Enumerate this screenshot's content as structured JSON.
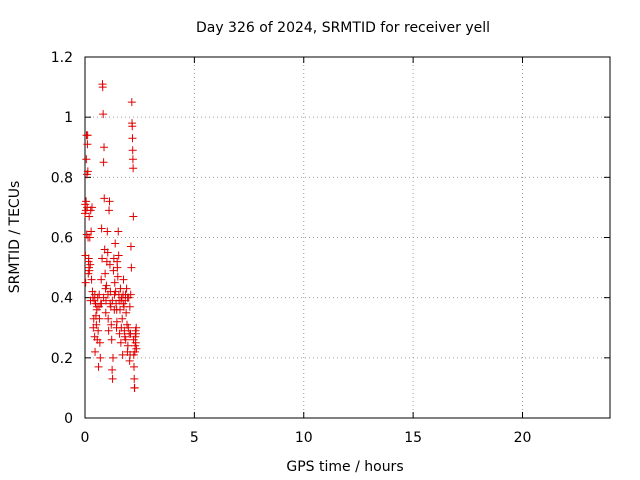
{
  "chart_data": {
    "type": "scatter",
    "title": "Day 326 of 2024, SRMTID for receiver yell",
    "xlabel": "GPS time / hours",
    "ylabel": "SRMTID / TECUs",
    "xlim": [
      0,
      24
    ],
    "ylim": [
      0,
      1.2
    ],
    "xticks": [
      0,
      5,
      10,
      15,
      20
    ],
    "yticks": [
      0,
      0.2,
      0.4,
      0.6,
      0.8,
      1,
      1.2
    ],
    "xtick_labels": [
      "0",
      "5",
      "10",
      "15",
      "20"
    ],
    "ytick_labels": [
      "0",
      "0.2",
      "0.4",
      "0.6",
      "0.8",
      "1",
      "1.2"
    ],
    "grid": true,
    "marker": "+",
    "marker_color": "#e00000",
    "series": [
      {
        "name": "SRMTID",
        "points": [
          [
            0.0,
            0.68
          ],
          [
            0.01,
            0.71
          ],
          [
            0.02,
            0.54
          ],
          [
            0.03,
            0.45
          ],
          [
            0.04,
            0.69
          ],
          [
            0.05,
            0.72
          ],
          [
            0.06,
            0.86
          ],
          [
            0.07,
            0.94
          ],
          [
            0.08,
            0.61
          ],
          [
            0.09,
            0.81
          ],
          [
            0.1,
            0.7
          ],
          [
            0.11,
            0.91
          ],
          [
            0.12,
            0.94
          ],
          [
            0.13,
            0.82
          ],
          [
            0.14,
            0.6
          ],
          [
            0.15,
            0.48
          ],
          [
            0.16,
            0.52
          ],
          [
            0.17,
            0.53
          ],
          [
            0.18,
            0.5
          ],
          [
            0.19,
            0.67
          ],
          [
            0.2,
            0.49
          ],
          [
            0.22,
            0.6
          ],
          [
            0.24,
            0.51
          ],
          [
            0.26,
            0.69
          ],
          [
            0.28,
            0.62
          ],
          [
            0.3,
            0.46
          ],
          [
            0.32,
            0.7
          ],
          [
            0.34,
            0.42
          ],
          [
            0.36,
            0.4
          ],
          [
            0.38,
            0.3
          ],
          [
            0.4,
            0.33
          ],
          [
            0.42,
            0.39
          ],
          [
            0.44,
            0.27
          ],
          [
            0.46,
            0.22
          ],
          [
            0.48,
            0.38
          ],
          [
            0.5,
            0.34
          ],
          [
            0.52,
            0.31
          ],
          [
            0.54,
            0.36
          ],
          [
            0.56,
            0.26
          ],
          [
            0.58,
            0.4
          ],
          [
            0.6,
            0.29
          ],
          [
            0.62,
            0.17
          ],
          [
            0.64,
            0.37
          ],
          [
            0.66,
            0.33
          ],
          [
            0.68,
            0.25
          ],
          [
            0.7,
            0.2
          ],
          [
            0.72,
            0.38
          ],
          [
            0.74,
            0.46
          ],
          [
            0.76,
            0.63
          ],
          [
            0.78,
            0.53
          ],
          [
            0.8,
            1.11
          ],
          [
            0.81,
            1.1
          ],
          [
            0.83,
            1.01
          ],
          [
            0.85,
            0.85
          ],
          [
            0.87,
            0.9
          ],
          [
            0.88,
            0.73
          ],
          [
            0.9,
            0.56
          ],
          [
            0.92,
            0.48
          ],
          [
            0.94,
            0.43
          ],
          [
            0.96,
            0.39
          ],
          [
            0.98,
            0.44
          ],
          [
            1.0,
            0.52
          ],
          [
            1.02,
            0.62
          ],
          [
            1.04,
            0.55
          ],
          [
            1.06,
            0.33
          ],
          [
            1.08,
            0.29
          ],
          [
            1.1,
            0.69
          ],
          [
            1.12,
            0.72
          ],
          [
            1.14,
            0.51
          ],
          [
            1.16,
            0.42
          ],
          [
            1.18,
            0.37
          ],
          [
            1.2,
            0.31
          ],
          [
            1.22,
            0.26
          ],
          [
            1.24,
            0.16
          ],
          [
            1.26,
            0.13
          ],
          [
            1.28,
            0.2
          ],
          [
            1.3,
            0.49
          ],
          [
            1.32,
            0.53
          ],
          [
            1.34,
            0.36
          ],
          [
            1.36,
            0.45
          ],
          [
            1.38,
            0.58
          ],
          [
            1.4,
            0.42
          ],
          [
            1.42,
            0.38
          ],
          [
            1.44,
            0.3
          ],
          [
            1.46,
            0.32
          ],
          [
            1.48,
            0.5
          ],
          [
            1.5,
            0.47
          ],
          [
            1.52,
            0.62
          ],
          [
            1.54,
            0.54
          ],
          [
            1.56,
            0.39
          ],
          [
            1.58,
            0.28
          ],
          [
            1.6,
            0.36
          ],
          [
            1.62,
            0.43
          ],
          [
            1.64,
            0.25
          ],
          [
            1.66,
            0.3
          ],
          [
            1.68,
            0.4
          ],
          [
            1.7,
            0.33
          ],
          [
            1.72,
            0.21
          ],
          [
            1.74,
            0.41
          ],
          [
            1.76,
            0.46
          ],
          [
            1.78,
            0.37
          ],
          [
            1.8,
            0.29
          ],
          [
            1.82,
            0.27
          ],
          [
            1.84,
            0.39
          ],
          [
            1.86,
            0.26
          ],
          [
            1.88,
            0.35
          ],
          [
            1.9,
            0.43
          ],
          [
            1.92,
            0.31
          ],
          [
            1.94,
            0.22
          ],
          [
            1.96,
            0.24
          ],
          [
            1.98,
            0.3
          ],
          [
            2.0,
            0.4
          ],
          [
            2.02,
            0.28
          ],
          [
            2.04,
            0.19
          ],
          [
            2.06,
            0.21
          ],
          [
            2.08,
            0.28
          ],
          [
            2.1,
            0.57
          ],
          [
            2.12,
            0.5
          ],
          [
            2.14,
            1.05
          ],
          [
            2.15,
            0.98
          ],
          [
            2.16,
            0.97
          ],
          [
            2.17,
            0.93
          ],
          [
            2.18,
            0.89
          ],
          [
            2.19,
            0.86
          ],
          [
            2.2,
            0.83
          ],
          [
            2.21,
            0.67
          ],
          [
            2.22,
            0.26
          ],
          [
            2.23,
            0.21
          ],
          [
            2.24,
            0.17
          ],
          [
            2.25,
            0.13
          ],
          [
            2.26,
            0.1
          ],
          [
            2.27,
            0.1
          ],
          [
            2.28,
            0.22
          ],
          [
            2.29,
            0.24
          ],
          [
            2.3,
            0.27
          ],
          [
            2.31,
            0.29
          ],
          [
            2.32,
            0.25
          ],
          [
            2.33,
            0.28
          ],
          [
            2.34,
            0.3
          ],
          [
            2.35,
            0.23
          ],
          [
            0.25,
            0.39
          ],
          [
            0.45,
            0.41
          ],
          [
            0.55,
            0.37
          ],
          [
            0.65,
            0.41
          ],
          [
            0.75,
            0.38
          ],
          [
            0.85,
            0.4
          ],
          [
            0.95,
            0.35
          ],
          [
            1.05,
            0.41
          ],
          [
            1.15,
            0.38
          ],
          [
            1.25,
            0.39
          ],
          [
            1.35,
            0.41
          ],
          [
            1.45,
            0.36
          ],
          [
            1.55,
            0.41
          ],
          [
            1.65,
            0.39
          ],
          [
            1.75,
            0.38
          ],
          [
            1.85,
            0.41
          ],
          [
            1.95,
            0.4
          ],
          [
            2.05,
            0.37
          ],
          [
            2.09,
            0.41
          ],
          [
            1.47,
            0.52
          ]
        ]
      }
    ]
  }
}
